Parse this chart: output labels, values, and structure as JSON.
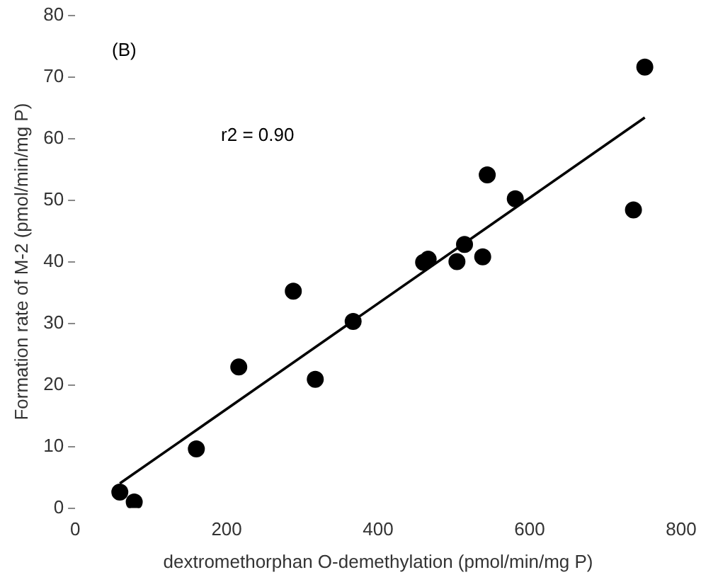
{
  "chart_data": {
    "type": "scatter",
    "xlabel": "dextromethorphan O-demethylation (pmol/min/mg P)",
    "ylabel": "Formation rate of M-2 (pmol/min/mg P)",
    "annotations": [
      "(B)",
      "r2 = 0.90"
    ],
    "series": [
      {
        "type": "scatter",
        "marker": "circle",
        "color": "#000000",
        "x": [
          59,
          78,
          160,
          216,
          288,
          317,
          367,
          460,
          466,
          504,
          514,
          538,
          544,
          581,
          737,
          752
        ],
        "values": [
          2.6,
          1.0,
          9.6,
          22.9,
          35.2,
          20.9,
          30.3,
          39.9,
          40.4,
          40,
          42.8,
          40.8,
          54.1,
          50.2,
          48.4,
          71.6
        ]
      },
      {
        "type": "line",
        "color": "#000000",
        "x": [
          59,
          752
        ],
        "values": [
          4.0,
          63.4
        ]
      }
    ],
    "xlim": [
      0,
      800
    ],
    "xticks": [
      0,
      200,
      400,
      600,
      800
    ],
    "ylim": [
      0,
      80
    ],
    "yticks": [
      0,
      10,
      20,
      30,
      40,
      50,
      60,
      70,
      80
    ],
    "grid": false,
    "legend": false
  }
}
